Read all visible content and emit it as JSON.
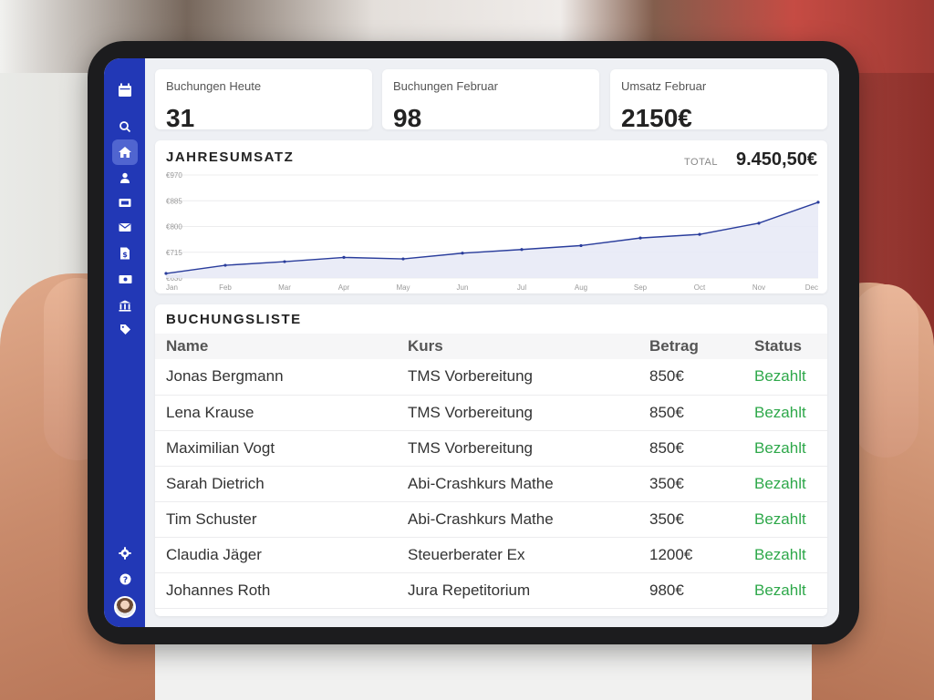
{
  "stats": [
    {
      "label": "Buchungen Heute",
      "value": "31"
    },
    {
      "label": "Buchungen Februar",
      "value": "98"
    },
    {
      "label": "Umsatz Februar",
      "value": "2150€"
    }
  ],
  "sidebar": {
    "accent": "#2238b6",
    "icons": [
      "calendar-icon",
      "search-icon",
      "home-icon",
      "user-icon",
      "ticket-icon",
      "mail-icon",
      "invoice-icon",
      "money-icon",
      "bank-icon",
      "tag-icon",
      "settings-icon",
      "help-icon"
    ]
  },
  "revenue": {
    "title": "JAHRESUMSATZ",
    "total_label": "TOTAL",
    "total_value": "9.450,50€"
  },
  "chart_data": {
    "type": "area",
    "categories": [
      "Jan",
      "Feb",
      "Mar",
      "Apr",
      "May",
      "Jun",
      "Jul",
      "Aug",
      "Sep",
      "Oct",
      "Nov",
      "Dec"
    ],
    "series": [
      {
        "values": [
          645,
          672,
          684,
          698,
          693,
          712,
          724,
          737,
          762,
          774,
          811,
          880
        ]
      }
    ],
    "yticks": [
      "€970",
      "€885",
      "€800",
      "€715",
      "€630"
    ],
    "ylim": [
      630,
      970
    ],
    "grid": true,
    "line_color": "#2a3d9c",
    "fill_color": "#e8eaf6"
  },
  "bookings": {
    "title": "BUCHUNGSLISTE",
    "columns": [
      "Name",
      "Kurs",
      "Betrag",
      "Status"
    ],
    "rows": [
      [
        "Jonas Bergmann",
        "TMS Vorbereitung",
        "850€",
        "Bezahlt"
      ],
      [
        "Lena Krause",
        "TMS Vorbereitung",
        "850€",
        "Bezahlt"
      ],
      [
        "Maximilian Vogt",
        "TMS Vorbereitung",
        "850€",
        "Bezahlt"
      ],
      [
        "Sarah Dietrich",
        "Abi-Crashkurs Mathe",
        "350€",
        "Bezahlt"
      ],
      [
        "Tim Schuster",
        "Abi-Crashkurs Mathe",
        "350€",
        "Bezahlt"
      ],
      [
        "Claudia Jäger",
        "Steuerberater Ex",
        "1200€",
        "Bezahlt"
      ],
      [
        "Johannes Roth",
        "Jura Repetitorium",
        "980€",
        "Bezahlt"
      ]
    ],
    "status_color": "#2ea84a"
  }
}
